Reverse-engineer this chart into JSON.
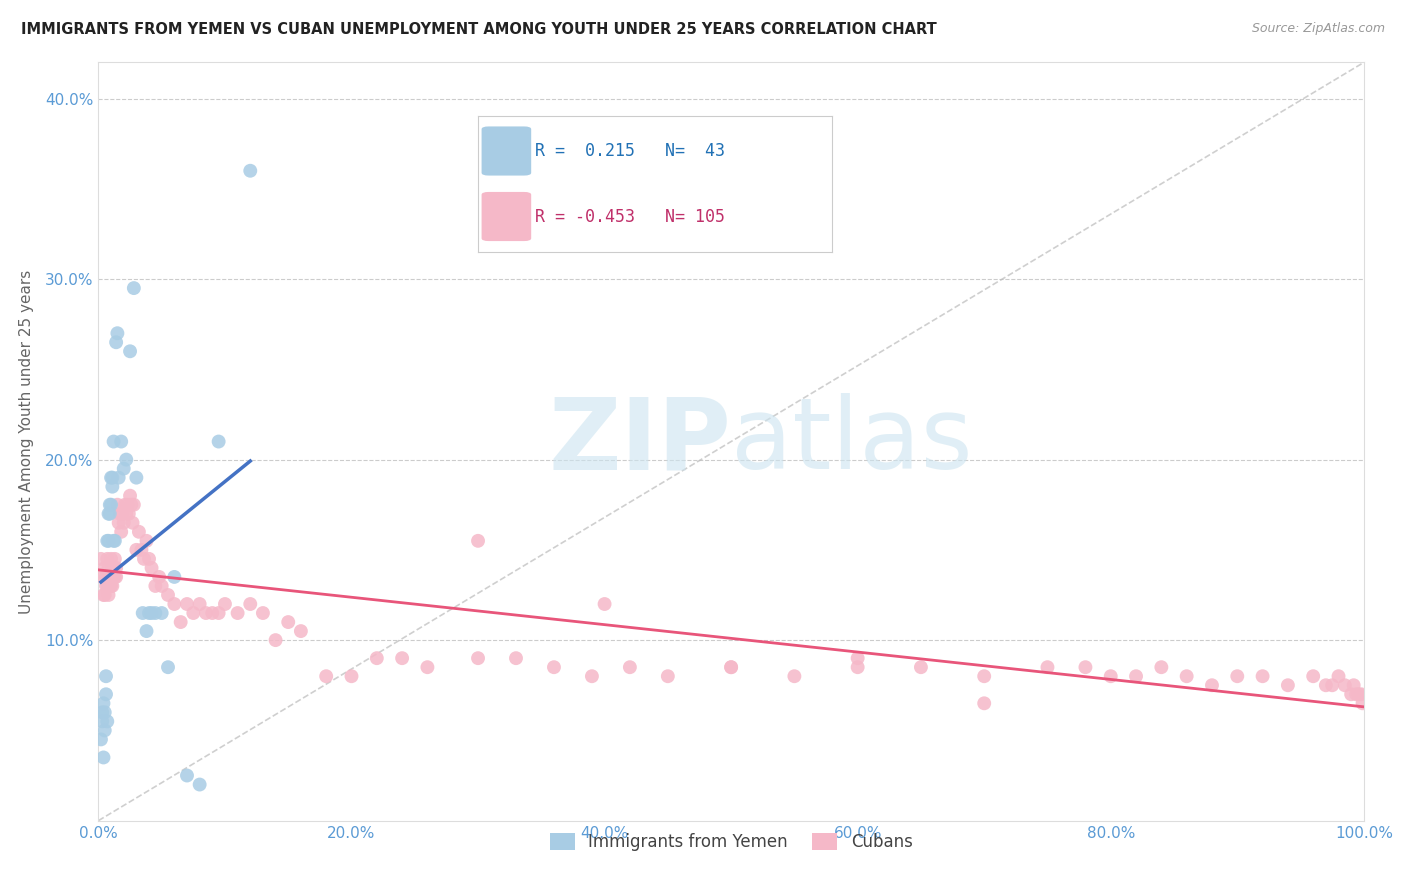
{
  "title": "IMMIGRANTS FROM YEMEN VS CUBAN UNEMPLOYMENT AMONG YOUTH UNDER 25 YEARS CORRELATION CHART",
  "source": "Source: ZipAtlas.com",
  "ylabel": "Unemployment Among Youth under 25 years",
  "legend_labels": [
    "Immigrants from Yemen",
    "Cubans"
  ],
  "r_yemen": 0.215,
  "n_yemen": 43,
  "r_cuban": -0.453,
  "n_cuban": 105,
  "xlim": [
    0,
    1.0
  ],
  "ylim": [
    0,
    0.42
  ],
  "xticks": [
    0.0,
    0.2,
    0.4,
    0.6,
    0.8,
    1.0
  ],
  "yticks": [
    0.0,
    0.1,
    0.2,
    0.3,
    0.4
  ],
  "xticklabels": [
    "0.0%",
    "20.0%",
    "40.0%",
    "60.0%",
    "80.0%",
    "100.0%"
  ],
  "yticklabels": [
    "",
    "10.0%",
    "20.0%",
    "30.0%",
    "40.0%"
  ],
  "color_yemen": "#a8cce4",
  "color_cuban": "#f5b8c8",
  "color_trendline_yemen": "#4472c4",
  "color_trendline_cuban": "#e8557a",
  "background_color": "#ffffff",
  "watermark_color": "#cce4f0",
  "yemen_x": [
    0.002,
    0.003,
    0.003,
    0.004,
    0.004,
    0.005,
    0.005,
    0.006,
    0.006,
    0.007,
    0.007,
    0.008,
    0.008,
    0.009,
    0.009,
    0.01,
    0.01,
    0.011,
    0.011,
    0.012,
    0.012,
    0.013,
    0.014,
    0.015,
    0.016,
    0.018,
    0.02,
    0.022,
    0.025,
    0.028,
    0.03,
    0.035,
    0.038,
    0.04,
    0.042,
    0.045,
    0.05,
    0.055,
    0.06,
    0.07,
    0.08,
    0.095,
    0.12
  ],
  "yemen_y": [
    0.045,
    0.055,
    0.06,
    0.035,
    0.065,
    0.05,
    0.06,
    0.07,
    0.08,
    0.055,
    0.155,
    0.155,
    0.17,
    0.17,
    0.175,
    0.175,
    0.19,
    0.19,
    0.185,
    0.155,
    0.21,
    0.155,
    0.265,
    0.27,
    0.19,
    0.21,
    0.195,
    0.2,
    0.26,
    0.295,
    0.19,
    0.115,
    0.105,
    0.115,
    0.115,
    0.115,
    0.115,
    0.085,
    0.135,
    0.025,
    0.02,
    0.21,
    0.36
  ],
  "cuban_x": [
    0.002,
    0.003,
    0.004,
    0.005,
    0.005,
    0.006,
    0.006,
    0.007,
    0.007,
    0.008,
    0.008,
    0.009,
    0.009,
    0.01,
    0.01,
    0.011,
    0.011,
    0.012,
    0.012,
    0.013,
    0.013,
    0.014,
    0.014,
    0.015,
    0.016,
    0.017,
    0.018,
    0.019,
    0.02,
    0.021,
    0.022,
    0.023,
    0.024,
    0.025,
    0.026,
    0.027,
    0.028,
    0.03,
    0.032,
    0.034,
    0.036,
    0.038,
    0.04,
    0.042,
    0.045,
    0.048,
    0.05,
    0.055,
    0.06,
    0.065,
    0.07,
    0.075,
    0.08,
    0.085,
    0.09,
    0.095,
    0.1,
    0.11,
    0.12,
    0.13,
    0.14,
    0.15,
    0.16,
    0.18,
    0.2,
    0.22,
    0.24,
    0.26,
    0.3,
    0.33,
    0.36,
    0.39,
    0.42,
    0.45,
    0.5,
    0.55,
    0.6,
    0.65,
    0.7,
    0.75,
    0.78,
    0.8,
    0.82,
    0.84,
    0.86,
    0.88,
    0.9,
    0.92,
    0.94,
    0.96,
    0.97,
    0.975,
    0.98,
    0.985,
    0.99,
    0.992,
    0.994,
    0.996,
    0.998,
    0.999,
    0.3,
    0.4,
    0.5,
    0.6,
    0.7
  ],
  "cuban_y": [
    0.145,
    0.135,
    0.125,
    0.14,
    0.125,
    0.13,
    0.135,
    0.13,
    0.145,
    0.125,
    0.14,
    0.13,
    0.135,
    0.13,
    0.145,
    0.14,
    0.13,
    0.135,
    0.14,
    0.145,
    0.135,
    0.14,
    0.135,
    0.175,
    0.165,
    0.17,
    0.16,
    0.17,
    0.165,
    0.175,
    0.17,
    0.175,
    0.17,
    0.18,
    0.175,
    0.165,
    0.175,
    0.15,
    0.16,
    0.15,
    0.145,
    0.155,
    0.145,
    0.14,
    0.13,
    0.135,
    0.13,
    0.125,
    0.12,
    0.11,
    0.12,
    0.115,
    0.12,
    0.115,
    0.115,
    0.115,
    0.12,
    0.115,
    0.12,
    0.115,
    0.1,
    0.11,
    0.105,
    0.08,
    0.08,
    0.09,
    0.09,
    0.085,
    0.09,
    0.09,
    0.085,
    0.08,
    0.085,
    0.08,
    0.085,
    0.08,
    0.085,
    0.085,
    0.08,
    0.085,
    0.085,
    0.08,
    0.08,
    0.085,
    0.08,
    0.075,
    0.08,
    0.08,
    0.075,
    0.08,
    0.075,
    0.075,
    0.08,
    0.075,
    0.07,
    0.075,
    0.07,
    0.07,
    0.07,
    0.065,
    0.155,
    0.12,
    0.085,
    0.09,
    0.065
  ]
}
